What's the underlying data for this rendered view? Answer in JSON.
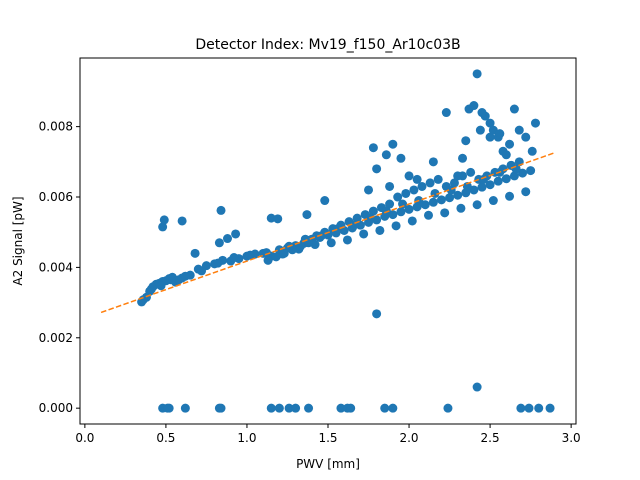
{
  "chart_data": {
    "type": "scatter",
    "title": "Detector Index: Mv19_f150_Ar10c03B",
    "xlabel": "PWV [mm]",
    "ylabel": "A2 Signal [pW]",
    "xlim": [
      -0.03,
      3.03
    ],
    "ylim": [
      -0.00045,
      0.00995
    ],
    "x_ticks": [
      0.0,
      0.5,
      1.0,
      1.5,
      2.0,
      2.5,
      3.0
    ],
    "x_tick_labels": [
      "0.0",
      "0.5",
      "1.0",
      "1.5",
      "2.0",
      "2.5",
      "3.0"
    ],
    "y_ticks": [
      0.0,
      0.002,
      0.004,
      0.006,
      0.008
    ],
    "y_tick_labels": [
      "0.000",
      "0.002",
      "0.004",
      "0.006",
      "0.008"
    ],
    "colors": {
      "points": "#1f77b4",
      "fit": "#ff7f0e",
      "axes": "#000000"
    },
    "series": [
      {
        "name": "measurements",
        "kind": "scatter",
        "x": [
          0.35,
          0.38,
          0.4,
          0.42,
          0.44,
          0.46,
          0.48,
          0.5,
          0.52,
          0.54,
          0.56,
          0.58,
          0.6,
          0.65,
          0.7,
          0.75,
          0.8,
          0.85,
          0.9,
          0.95,
          1.0,
          1.05,
          1.1,
          1.15,
          1.2,
          1.25,
          1.3,
          1.35,
          1.4,
          1.45,
          1.5,
          1.55,
          1.6,
          1.65,
          1.7,
          1.75,
          1.8,
          1.85,
          1.9,
          1.95,
          2.0,
          2.05,
          2.1,
          2.15,
          2.2,
          2.25,
          2.3,
          2.35,
          2.4,
          2.45,
          2.5,
          2.55,
          2.6,
          2.65,
          2.7,
          2.75,
          0.36,
          0.41,
          0.47,
          0.53,
          0.62,
          0.72,
          0.82,
          0.92,
          1.02,
          1.12,
          1.22,
          1.32,
          1.42,
          1.52,
          1.62,
          1.72,
          1.82,
          1.92,
          2.02,
          2.12,
          2.22,
          2.32,
          2.42,
          2.52,
          2.62,
          2.72,
          1.13,
          1.18,
          1.23,
          1.28,
          1.33,
          1.38,
          1.43,
          1.48,
          1.53,
          1.58,
          1.63,
          1.68,
          1.73,
          1.78,
          1.83,
          1.88,
          1.93,
          1.98,
          2.03,
          2.08,
          2.13,
          2.18,
          2.23,
          2.28,
          2.33,
          2.38,
          2.43,
          2.48,
          2.53,
          2.58,
          2.63,
          2.68,
          1.26,
          1.36,
          1.46,
          1.56,
          1.66,
          1.76,
          1.86,
          1.96,
          2.06,
          2.16,
          2.26,
          2.36,
          2.46,
          2.56,
          2.66,
          0.48,
          0.49,
          0.6,
          0.68,
          0.83,
          0.84,
          0.88,
          0.93,
          1.15,
          1.19,
          1.37,
          1.48,
          1.75,
          1.78,
          1.9,
          1.8,
          1.86,
          1.88,
          1.95,
          2.0,
          2.05,
          2.15,
          2.23,
          2.3,
          2.33,
          2.37,
          2.4,
          2.44,
          2.47,
          2.5,
          2.55,
          2.58,
          2.62,
          2.65,
          2.68,
          2.72,
          2.76,
          2.78,
          2.35,
          2.42,
          2.45,
          2.5,
          2.52,
          2.56,
          2.6,
          2.63,
          2.66,
          1.8,
          2.42,
          0.48,
          0.51,
          0.52,
          0.62,
          0.83,
          0.84,
          1.15,
          1.2,
          1.26,
          1.3,
          1.38,
          1.58,
          1.62,
          1.64,
          1.85,
          1.9,
          2.24,
          2.69,
          2.74,
          2.8,
          2.87
        ],
        "y": [
          0.00302,
          0.00315,
          0.00332,
          0.00345,
          0.00352,
          0.00355,
          0.0036,
          0.00362,
          0.00368,
          0.00372,
          0.00358,
          0.00365,
          0.0037,
          0.00378,
          0.00395,
          0.00405,
          0.0041,
          0.0042,
          0.00418,
          0.00425,
          0.00432,
          0.00438,
          0.0044,
          0.00432,
          0.0045,
          0.00455,
          0.00462,
          0.00468,
          0.0048,
          0.00485,
          0.00492,
          0.00498,
          0.00505,
          0.00512,
          0.0052,
          0.00528,
          0.00535,
          0.00545,
          0.0055,
          0.00558,
          0.00565,
          0.00572,
          0.00578,
          0.00585,
          0.00592,
          0.00598,
          0.00605,
          0.00612,
          0.0062,
          0.00628,
          0.00635,
          0.00645,
          0.00652,
          0.0066,
          0.00668,
          0.00675,
          0.00308,
          0.00338,
          0.00348,
          0.00365,
          0.00375,
          0.0039,
          0.00412,
          0.00428,
          0.00435,
          0.00442,
          0.00438,
          0.00452,
          0.00465,
          0.0047,
          0.00478,
          0.00495,
          0.00505,
          0.00518,
          0.00532,
          0.00548,
          0.00555,
          0.00568,
          0.00578,
          0.0059,
          0.00602,
          0.00615,
          0.0042,
          0.0043,
          0.0044,
          0.0045,
          0.0046,
          0.0047,
          0.0049,
          0.005,
          0.0051,
          0.0052,
          0.0053,
          0.0054,
          0.0055,
          0.0056,
          0.0057,
          0.0058,
          0.006,
          0.0061,
          0.0062,
          0.0063,
          0.0064,
          0.0065,
          0.0063,
          0.0064,
          0.0066,
          0.0067,
          0.0065,
          0.0066,
          0.0067,
          0.0068,
          0.0069,
          0.007,
          0.0046,
          0.0048,
          0.0049,
          0.0051,
          0.0052,
          0.0054,
          0.0056,
          0.0058,
          0.0059,
          0.0061,
          0.0062,
          0.0063,
          0.0065,
          0.0067,
          0.0068,
          0.00515,
          0.00535,
          0.00532,
          0.0044,
          0.0047,
          0.00562,
          0.00482,
          0.00495,
          0.0054,
          0.00538,
          0.0055,
          0.0059,
          0.0062,
          0.0074,
          0.0075,
          0.0068,
          0.0072,
          0.0063,
          0.0071,
          0.0066,
          0.0065,
          0.007,
          0.0084,
          0.0066,
          0.0071,
          0.0085,
          0.0086,
          0.0079,
          0.0083,
          0.0081,
          0.0077,
          0.0073,
          0.0075,
          0.0085,
          0.0079,
          0.0077,
          0.0073,
          0.0081,
          0.0076,
          0.0095,
          0.0084,
          0.0077,
          0.0079,
          0.0078,
          0.0072,
          0.0069,
          0.0068,
          0.00268,
          0.0006,
          0.0,
          0.0,
          0.0,
          0.0,
          0.0,
          0.0,
          0.0,
          0.0,
          0.0,
          0.0,
          0.0,
          0.0,
          0.0,
          0.0,
          0.0,
          0.0,
          0.0,
          0.0,
          0.0,
          0.0,
          0.0
        ]
      },
      {
        "name": "linear fit",
        "kind": "dashed-line",
        "x": [
          0.1,
          2.9
        ],
        "y": [
          0.00272,
          0.00726
        ]
      }
    ]
  }
}
